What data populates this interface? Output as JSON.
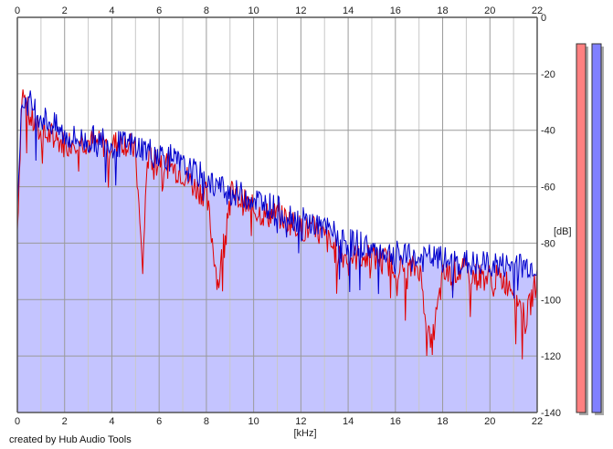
{
  "credit": "created by Hub Audio Tools",
  "chart_data": {
    "type": "line",
    "xlabel": "[kHz]",
    "ylabel": "[dB]",
    "xlim": [
      0,
      22
    ],
    "ylim": [
      -140,
      0
    ],
    "x_ticks": [
      "0",
      "2",
      "4",
      "6",
      "8",
      "10",
      "12",
      "14",
      "16",
      "18",
      "20",
      "22"
    ],
    "y_ticks": [
      "0",
      "-20",
      "-40",
      "-60",
      "-80",
      "-100",
      "-120",
      "-140"
    ],
    "grid": true,
    "colors": {
      "fill": "#c4c4ff",
      "grid_major": "#9a9a9a",
      "grid_minor": "#c8c8c8",
      "axis": "#555555"
    },
    "series": [
      {
        "color": "#e00000",
        "x": [
          0,
          0.2,
          0.5,
          1,
          1.5,
          2,
          2.5,
          3,
          3.5,
          4,
          4.5,
          5,
          5.3,
          5.5,
          6,
          6.5,
          7,
          7.5,
          8,
          8.5,
          9,
          9.5,
          10,
          10.5,
          11,
          11.5,
          12,
          12.5,
          13,
          13.5,
          14,
          14.5,
          15,
          15.5,
          16,
          16.5,
          17,
          17.5,
          18,
          18.5,
          19,
          19.5,
          20,
          20.5,
          21,
          21.5,
          22
        ],
        "values": [
          -75,
          -26,
          -35,
          -42,
          -42,
          -45,
          -43,
          -44,
          -45,
          -45,
          -44,
          -47,
          -90,
          -50,
          -50,
          -53,
          -55,
          -60,
          -63,
          -95,
          -62,
          -65,
          -68,
          -70,
          -70,
          -72,
          -75,
          -75,
          -78,
          -83,
          -85,
          -85,
          -85,
          -86,
          -88,
          -90,
          -88,
          -118,
          -92,
          -90,
          -90,
          -92,
          -92,
          -93,
          -95,
          -108,
          -92
        ]
      },
      {
        "color": "#0000cc",
        "x": [
          0,
          0.2,
          0.5,
          1,
          1.5,
          2,
          2.5,
          3,
          3.5,
          4,
          4.5,
          5,
          5.5,
          6,
          6.5,
          7,
          7.5,
          8,
          8.5,
          9,
          9.5,
          10,
          10.5,
          11,
          11.5,
          12,
          12.5,
          13,
          13.5,
          14,
          14.5,
          15,
          15.5,
          16,
          16.5,
          17,
          17.5,
          18,
          18.5,
          19,
          19.5,
          20,
          20.5,
          21,
          21.5,
          22
        ],
        "values": [
          -62,
          -30,
          -30,
          -35,
          -38,
          -42,
          -43,
          -44,
          -42,
          -45,
          -45,
          -45,
          -47,
          -48,
          -50,
          -53,
          -55,
          -57,
          -60,
          -62,
          -63,
          -64,
          -66,
          -68,
          -70,
          -72,
          -73,
          -75,
          -77,
          -80,
          -80,
          -82,
          -83,
          -84,
          -85,
          -86,
          -85,
          -86,
          -87,
          -87,
          -88,
          -87,
          -88,
          -88,
          -88,
          -88
        ]
      }
    ]
  },
  "meters": [
    {
      "color": "#ff8080",
      "level": 1.0
    },
    {
      "color": "#8080ff",
      "level": 1.0
    }
  ]
}
